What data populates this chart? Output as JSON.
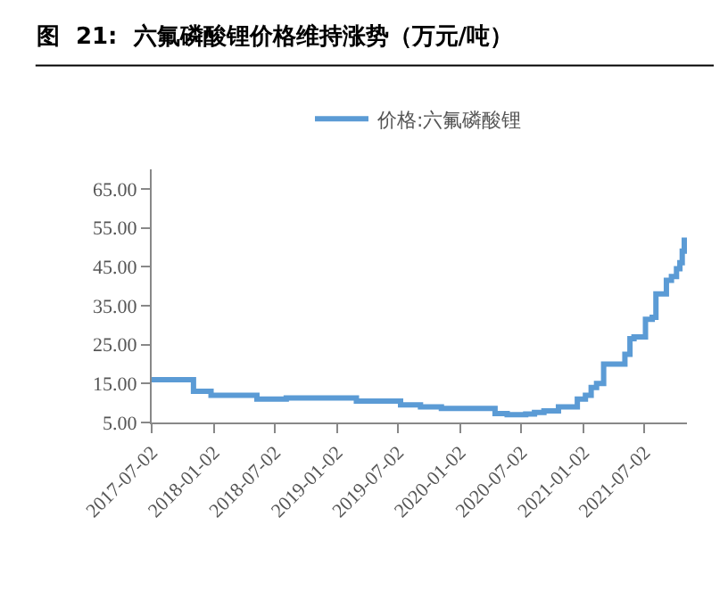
{
  "chart_data": {
    "type": "step",
    "title": "图  21:  六氟磷酸锂价格维持涨势（万元/吨）",
    "x": [
      "2017-07-02",
      "2017-11-03",
      "2017-12-25",
      "2018-05-10",
      "2018-08-05",
      "2019-03-01",
      "2019-07-10",
      "2019-09-07",
      "2019-11-08",
      "2020-04-15",
      "2020-05-21",
      "2020-07-15",
      "2020-08-10",
      "2020-09-07",
      "2020-10-20",
      "2020-12-15",
      "2021-01-08",
      "2021-01-25",
      "2021-02-10",
      "2021-03-03",
      "2021-05-05",
      "2021-05-20",
      "2021-06-01",
      "2021-07-05",
      "2021-07-25",
      "2021-08-05",
      "2021-08-25",
      "2021-09-05",
      "2021-09-20",
      "2021-10-05",
      "2021-10-15",
      "2021-10-22",
      "2021-10-28"
    ],
    "series": [
      {
        "name": "价格:六氟磷酸锂",
        "color": "#5b9bd5",
        "values": [
          16,
          13,
          12,
          11,
          11.3,
          10.5,
          9.5,
          9,
          8.6,
          7.3,
          7,
          7.2,
          7.6,
          8,
          9,
          11,
          12,
          14,
          15,
          20,
          22.5,
          26.5,
          27,
          31.5,
          32,
          38,
          38,
          41.5,
          42.5,
          44.5,
          46,
          49,
          52.5
        ]
      }
    ],
    "xlim": [
      "2017-07-02",
      "2021-11-05"
    ],
    "xticks": [
      "2017-07-02",
      "2018-01-02",
      "2018-07-02",
      "2019-01-02",
      "2019-07-02",
      "2020-01-02",
      "2020-07-02",
      "2021-01-02",
      "2021-07-02"
    ],
    "ylim": [
      5,
      70
    ],
    "yticks": [
      {
        "value": 5,
        "label": "5.00"
      },
      {
        "value": 15,
        "label": "15.00"
      },
      {
        "value": 25,
        "label": "25.00"
      },
      {
        "value": 35,
        "label": "35.00"
      },
      {
        "value": 45,
        "label": "45.00"
      },
      {
        "value": 55,
        "label": "55.00"
      },
      {
        "value": 65,
        "label": "65.00"
      }
    ],
    "legend": "top",
    "line_style": "solid",
    "marker": "none"
  }
}
